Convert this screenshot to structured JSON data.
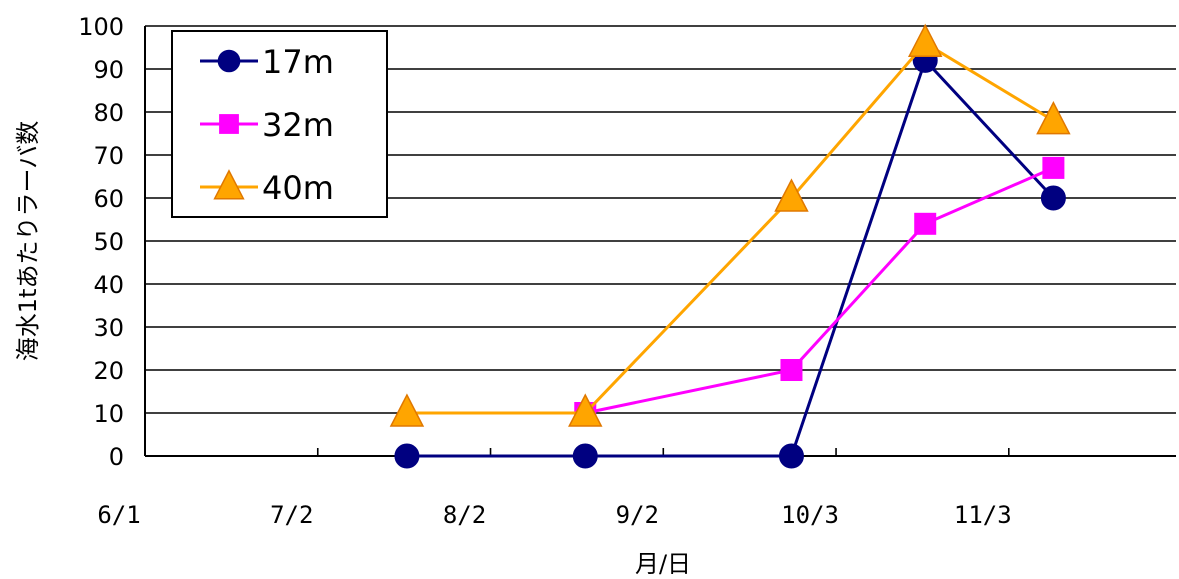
{
  "chart_data": {
    "type": "line",
    "title": "",
    "xlabel": "月/日",
    "ylabel": "海水1tあたりラーバ数",
    "x_ticks": [
      "6/1",
      "7/2",
      "8/2",
      "9/2",
      "10/3",
      "11/3"
    ],
    "x_tick_dates": [
      "2000-06-01",
      "2000-07-02",
      "2000-08-02",
      "2000-09-02",
      "2000-10-03",
      "2000-11-03"
    ],
    "xlim": [
      "2000-06-01",
      "2000-12-03"
    ],
    "y_ticks": [
      0,
      10,
      20,
      30,
      40,
      50,
      60,
      70,
      80,
      90,
      100
    ],
    "ylim": [
      0,
      100
    ],
    "grid": "horizontal",
    "legend_position": "top-left",
    "series": [
      {
        "name": "17m",
        "color": "#000080",
        "marker": "circle",
        "x": [
          "2000-07-18",
          "2000-08-19",
          "2000-09-25",
          "2000-10-19",
          "2000-11-11"
        ],
        "y": [
          0,
          0,
          0,
          92,
          60
        ]
      },
      {
        "name": "32m",
        "color": "#FF00FF",
        "marker": "square",
        "x": [
          "2000-08-19",
          "2000-09-25",
          "2000-10-19",
          "2000-11-11"
        ],
        "y": [
          10,
          20,
          54,
          67
        ]
      },
      {
        "name": "40m",
        "color": "#FFA500",
        "marker": "triangle",
        "x": [
          "2000-07-18",
          "2000-08-19",
          "2000-09-25",
          "2000-10-19",
          "2000-11-11"
        ],
        "y": [
          10,
          10,
          60,
          96,
          78
        ]
      }
    ]
  }
}
